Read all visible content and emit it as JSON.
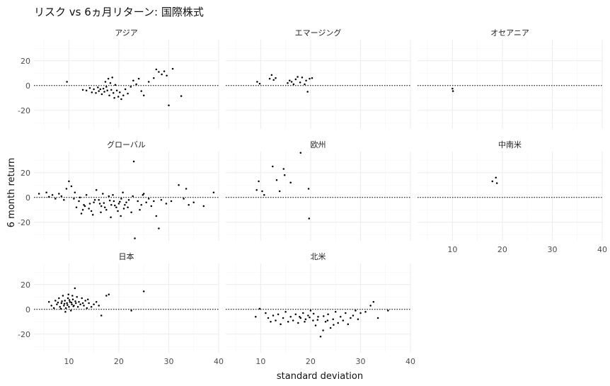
{
  "chart_data": {
    "type": "scatter",
    "title": "リスク vs 6ヵ月リターン: 国際株式",
    "xlabel": "standard deviation",
    "ylabel": "6 month return",
    "xlim": [
      3,
      40
    ],
    "ylim": [
      -35,
      37
    ],
    "x_ticks": [
      10,
      20,
      30,
      40
    ],
    "y_ticks": [
      -20,
      0,
      20
    ],
    "reference_line": {
      "y": 0,
      "style": "dotted"
    },
    "grid": true,
    "facets": [
      {
        "label": "アジア",
        "points": [
          [
            9.6,
            3.0
          ],
          [
            12.8,
            -3.5
          ],
          [
            13.5,
            -4.0
          ],
          [
            14.2,
            -2.0
          ],
          [
            14.6,
            -5.5
          ],
          [
            15.0,
            -3.0
          ],
          [
            15.4,
            -6.0
          ],
          [
            15.8,
            -1.5
          ],
          [
            16.0,
            -4.5
          ],
          [
            16.3,
            -3.0
          ],
          [
            16.6,
            -7.0
          ],
          [
            16.9,
            -2.5
          ],
          [
            17.1,
            -5.0
          ],
          [
            17.3,
            3.0
          ],
          [
            17.5,
            -1.0
          ],
          [
            17.7,
            -4.0
          ],
          [
            17.9,
            5.5
          ],
          [
            18.1,
            -8.0
          ],
          [
            18.3,
            2.0
          ],
          [
            18.5,
            -3.5
          ],
          [
            18.7,
            6.5
          ],
          [
            18.9,
            -6.0
          ],
          [
            19.1,
            -10.0
          ],
          [
            19.3,
            0.5
          ],
          [
            19.6,
            -4.0
          ],
          [
            19.9,
            -9.0
          ],
          [
            20.2,
            -5.5
          ],
          [
            20.5,
            -11.0
          ],
          [
            20.9,
            -8.0
          ],
          [
            21.3,
            -3.0
          ],
          [
            21.8,
            -6.5
          ],
          [
            22.4,
            -1.0
          ],
          [
            22.9,
            4.0
          ],
          [
            23.5,
            1.0
          ],
          [
            24.0,
            5.5
          ],
          [
            24.5,
            -4.5
          ],
          [
            25.0,
            -8.0
          ],
          [
            26.0,
            3.0
          ],
          [
            27.0,
            6.0
          ],
          [
            27.5,
            13.0
          ],
          [
            28.0,
            11.0
          ],
          [
            28.6,
            9.0
          ],
          [
            29.1,
            11.5
          ],
          [
            29.6,
            8.0
          ],
          [
            30.0,
            -16.0
          ],
          [
            30.8,
            13.5
          ],
          [
            32.5,
            -8.5
          ]
        ]
      },
      {
        "label": "エマージング",
        "points": [
          [
            9.3,
            3.0
          ],
          [
            9.8,
            1.5
          ],
          [
            11.8,
            5.5
          ],
          [
            12.2,
            8.5
          ],
          [
            12.6,
            4.5
          ],
          [
            13.0,
            6.0
          ],
          [
            15.4,
            2.0
          ],
          [
            15.8,
            4.0
          ],
          [
            16.2,
            3.0
          ],
          [
            16.6,
            1.0
          ],
          [
            17.0,
            5.0
          ],
          [
            17.4,
            7.0
          ],
          [
            17.9,
            2.5
          ],
          [
            18.3,
            6.5
          ],
          [
            18.8,
            1.0
          ],
          [
            19.1,
            4.0
          ],
          [
            19.4,
            -5.0
          ],
          [
            19.8,
            5.5
          ],
          [
            20.3,
            6.0
          ]
        ]
      },
      {
        "label": "オセアニア",
        "points": [
          [
            10.0,
            -2.5
          ],
          [
            10.1,
            -4.5
          ]
        ]
      },
      {
        "label": "グローバル",
        "points": [
          [
            4.0,
            3.0
          ],
          [
            5.5,
            4.0
          ],
          [
            6.0,
            0.5
          ],
          [
            6.7,
            2.0
          ],
          [
            7.3,
            -1.0
          ],
          [
            8.0,
            3.0
          ],
          [
            8.5,
            1.0
          ],
          [
            9.0,
            -2.0
          ],
          [
            9.5,
            7.0
          ],
          [
            10.0,
            13.0
          ],
          [
            10.5,
            9.0
          ],
          [
            11.0,
            -1.0
          ],
          [
            11.5,
            -8.0
          ],
          [
            12.0,
            -3.0
          ],
          [
            12.5,
            -13.0
          ],
          [
            13.0,
            -6.0
          ],
          [
            13.5,
            2.0
          ],
          [
            14.0,
            -9.0
          ],
          [
            14.5,
            -11.0
          ],
          [
            15.0,
            -4.0
          ],
          [
            15.5,
            6.0
          ],
          [
            16.0,
            -2.0
          ],
          [
            16.5,
            -7.0
          ],
          [
            17.0,
            -4.5
          ],
          [
            17.5,
            -10.0
          ],
          [
            18.0,
            1.0
          ],
          [
            18.5,
            -6.0
          ],
          [
            19.0,
            -3.0
          ],
          [
            19.5,
            -8.0
          ],
          [
            20.0,
            -5.0
          ],
          [
            20.5,
            -1.0
          ],
          [
            21.0,
            -9.0
          ],
          [
            21.5,
            -4.0
          ],
          [
            22.0,
            -2.0
          ],
          [
            22.5,
            -12.0
          ],
          [
            23.0,
            29.0
          ],
          [
            23.2,
            -33.0
          ],
          [
            23.8,
            -3.0
          ],
          [
            24.5,
            -6.0
          ],
          [
            25.0,
            3.0
          ],
          [
            25.5,
            -4.0
          ],
          [
            26.0,
            -1.0
          ],
          [
            26.5,
            -7.0
          ],
          [
            27.0,
            -3.0
          ],
          [
            27.5,
            -15.0
          ],
          [
            28.0,
            -25.0
          ],
          [
            28.5,
            -2.0
          ],
          [
            29.5,
            -5.0
          ],
          [
            30.5,
            -3.0
          ],
          [
            32.0,
            10.0
          ],
          [
            33.0,
            -1.0
          ],
          [
            33.5,
            7.0
          ],
          [
            34.0,
            -6.0
          ],
          [
            35.0,
            -4.0
          ],
          [
            37.0,
            -7.0
          ],
          [
            39.0,
            4.0
          ],
          [
            11.2,
            4.0
          ],
          [
            12.2,
            0.0
          ],
          [
            13.2,
            -7.0
          ],
          [
            14.2,
            -5.0
          ],
          [
            15.2,
            -2.0
          ],
          [
            16.2,
            -5.0
          ],
          [
            17.2,
            -8.0
          ],
          [
            18.2,
            -2.5
          ],
          [
            19.2,
            -6.5
          ],
          [
            20.2,
            -3.5
          ],
          [
            21.2,
            -6.0
          ],
          [
            16.8,
            3.0
          ],
          [
            18.8,
            2.0
          ],
          [
            20.8,
            4.0
          ],
          [
            22.8,
            1.0
          ],
          [
            24.8,
            2.0
          ],
          [
            14.8,
            -14.0
          ],
          [
            16.4,
            -12.0
          ],
          [
            18.4,
            -16.0
          ],
          [
            20.4,
            -15.0
          ],
          [
            12.8,
            -10.0
          ],
          [
            19.8,
            -11.0
          ],
          [
            21.8,
            -8.0
          ],
          [
            24.2,
            -10.0
          ]
        ]
      },
      {
        "label": "欧州",
        "points": [
          [
            9.2,
            6.0
          ],
          [
            9.6,
            13.0
          ],
          [
            10.3,
            5.0
          ],
          [
            10.7,
            2.0
          ],
          [
            12.4,
            25.0
          ],
          [
            13.2,
            14.0
          ],
          [
            13.8,
            5.0
          ],
          [
            14.6,
            23.0
          ],
          [
            14.8,
            18.0
          ],
          [
            16.0,
            12.0
          ],
          [
            18.0,
            36.0
          ],
          [
            19.6,
            7.0
          ],
          [
            19.7,
            -17.0
          ]
        ]
      },
      {
        "label": "中南米",
        "points": [
          [
            18.0,
            13.0
          ],
          [
            18.7,
            16.0
          ],
          [
            18.9,
            11.5
          ]
        ]
      },
      {
        "label": "日本",
        "points": [
          [
            6.0,
            6.0
          ],
          [
            6.5,
            3.0
          ],
          [
            7.0,
            1.0
          ],
          [
            7.3,
            7.0
          ],
          [
            7.6,
            4.0
          ],
          [
            8.0,
            9.0
          ],
          [
            8.2,
            2.0
          ],
          [
            8.5,
            5.0
          ],
          [
            8.8,
            11.0
          ],
          [
            9.0,
            3.0
          ],
          [
            9.2,
            7.0
          ],
          [
            9.4,
            1.0
          ],
          [
            9.6,
            5.0
          ],
          [
            9.8,
            9.0
          ],
          [
            10.0,
            2.0
          ],
          [
            10.2,
            6.0
          ],
          [
            10.4,
            -1.0
          ],
          [
            10.6,
            4.0
          ],
          [
            10.8,
            8.0
          ],
          [
            11.0,
            3.0
          ],
          [
            11.2,
            17.0
          ],
          [
            11.4,
            5.0
          ],
          [
            11.6,
            10.0
          ],
          [
            11.8,
            2.0
          ],
          [
            12.0,
            6.0
          ],
          [
            12.3,
            4.0
          ],
          [
            12.6,
            9.0
          ],
          [
            13.0,
            3.0
          ],
          [
            13.3,
            7.0
          ],
          [
            13.6,
            1.0
          ],
          [
            14.0,
            5.0
          ],
          [
            14.5,
            2.0
          ],
          [
            15.0,
            4.0
          ],
          [
            15.5,
            6.0
          ],
          [
            16.0,
            3.0
          ],
          [
            16.5,
            -5.0
          ],
          [
            17.5,
            11.0
          ],
          [
            18.0,
            12.0
          ],
          [
            22.5,
            -1.0
          ],
          [
            25.0,
            14.5
          ],
          [
            7.8,
            5.5
          ],
          [
            8.6,
            6.5
          ],
          [
            9.1,
            4.5
          ],
          [
            9.7,
            3.5
          ],
          [
            10.1,
            7.5
          ],
          [
            10.5,
            5.5
          ],
          [
            10.9,
            2.5
          ],
          [
            11.3,
            6.5
          ],
          [
            8.4,
            0.5
          ],
          [
            9.3,
            -2.0
          ],
          [
            12.8,
            5.0
          ],
          [
            13.8,
            8.0
          ],
          [
            10.7,
            11.0
          ],
          [
            9.9,
            12.0
          ]
        ]
      },
      {
        "label": "北米",
        "points": [
          [
            9.0,
            -6.0
          ],
          [
            9.8,
            0.5
          ],
          [
            11.0,
            -3.0
          ],
          [
            11.5,
            -7.0
          ],
          [
            12.0,
            -10.0
          ],
          [
            12.5,
            -5.0
          ],
          [
            13.0,
            -9.0
          ],
          [
            13.5,
            -4.0
          ],
          [
            14.0,
            -12.0
          ],
          [
            14.5,
            -7.0
          ],
          [
            15.0,
            -2.0
          ],
          [
            15.5,
            -10.0
          ],
          [
            16.0,
            -6.0
          ],
          [
            16.5,
            -9.0
          ],
          [
            17.0,
            -4.0
          ],
          [
            17.5,
            -11.0
          ],
          [
            18.0,
            -7.0
          ],
          [
            18.5,
            -3.0
          ],
          [
            19.0,
            -8.0
          ],
          [
            19.5,
            -5.0
          ],
          [
            20.0,
            -1.0
          ],
          [
            20.5,
            -9.0
          ],
          [
            21.0,
            -13.0
          ],
          [
            21.5,
            -6.0
          ],
          [
            22.0,
            -22.0
          ],
          [
            22.5,
            -17.0
          ],
          [
            23.0,
            -10.0
          ],
          [
            23.5,
            -4.0
          ],
          [
            24.0,
            -15.0
          ],
          [
            24.5,
            -8.0
          ],
          [
            25.0,
            -2.0
          ],
          [
            25.5,
            -11.0
          ],
          [
            26.0,
            -6.0
          ],
          [
            26.5,
            -9.0
          ],
          [
            27.0,
            -3.0
          ],
          [
            27.5,
            -12.0
          ],
          [
            28.0,
            -7.0
          ],
          [
            28.5,
            -5.0
          ],
          [
            29.0,
            -1.0
          ],
          [
            29.5,
            -8.0
          ],
          [
            30.0,
            -3.0
          ],
          [
            31.0,
            -2.0
          ],
          [
            32.0,
            3.0
          ],
          [
            32.6,
            6.0
          ],
          [
            33.5,
            -7.0
          ],
          [
            35.5,
            -1.0
          ],
          [
            19.8,
            -6.5
          ],
          [
            20.6,
            -3.5
          ],
          [
            21.4,
            -8.5
          ],
          [
            22.6,
            -5.5
          ],
          [
            23.4,
            -9.0
          ],
          [
            24.6,
            -12.5
          ],
          [
            18.8,
            -10.0
          ],
          [
            17.8,
            -6.0
          ]
        ]
      }
    ]
  }
}
